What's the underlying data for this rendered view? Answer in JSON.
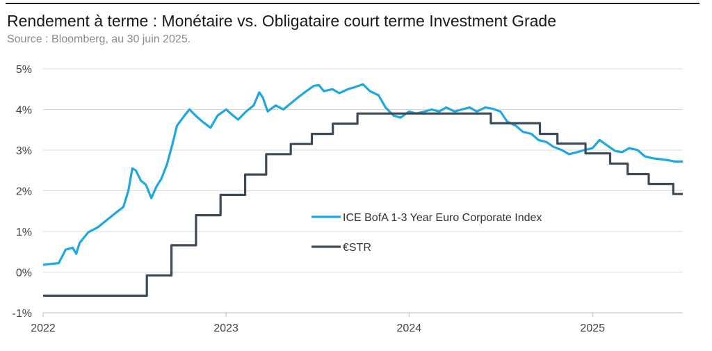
{
  "header": {
    "title": "Rendement à terme : Monétaire vs. Obligataire court terme Investment Grade",
    "subtitle": "Source : Bloomberg, au 30 juin 2025."
  },
  "chart_data": {
    "type": "line",
    "grid": "horizontal",
    "legend_placement": "center-right",
    "ylim": [
      -1,
      5
    ],
    "xlim": [
      "2022-01-01",
      "2025-06-30"
    ],
    "y_ticks": [
      {
        "value": 5,
        "label": "5%"
      },
      {
        "value": 4,
        "label": "4%"
      },
      {
        "value": 3,
        "label": "3%"
      },
      {
        "value": 2,
        "label": "2%"
      },
      {
        "value": 1,
        "label": "1%"
      },
      {
        "value": 0,
        "label": "0%"
      },
      {
        "value": -1,
        "label": "-1%"
      }
    ],
    "x_ticks": [
      {
        "value": "2022-01-01",
        "label": "2022"
      },
      {
        "value": "2023-01-01",
        "label": "2023"
      },
      {
        "value": "2024-01-01",
        "label": "2024"
      },
      {
        "value": "2025-01-01",
        "label": "2025"
      }
    ],
    "series": [
      {
        "name": "ICE BofA 1-3 Year Euro Corporate Index",
        "color": "#1ea7e1",
        "style": "line",
        "points": [
          [
            "2022-01-01",
            0.18
          ],
          [
            "2022-01-15",
            0.2
          ],
          [
            "2022-02-01",
            0.22
          ],
          [
            "2022-02-15",
            0.55
          ],
          [
            "2022-03-01",
            0.6
          ],
          [
            "2022-03-08",
            0.45
          ],
          [
            "2022-03-15",
            0.72
          ],
          [
            "2022-04-01",
            0.98
          ],
          [
            "2022-04-20",
            1.1
          ],
          [
            "2022-05-10",
            1.3
          ],
          [
            "2022-05-25",
            1.45
          ],
          [
            "2022-06-10",
            1.6
          ],
          [
            "2022-06-20",
            2.0
          ],
          [
            "2022-06-28",
            2.55
          ],
          [
            "2022-07-05",
            2.5
          ],
          [
            "2022-07-15",
            2.25
          ],
          [
            "2022-07-25",
            2.15
          ],
          [
            "2022-08-05",
            1.82
          ],
          [
            "2022-08-15",
            2.1
          ],
          [
            "2022-08-25",
            2.3
          ],
          [
            "2022-09-05",
            2.65
          ],
          [
            "2022-09-15",
            3.1
          ],
          [
            "2022-09-25",
            3.6
          ],
          [
            "2022-10-10",
            3.85
          ],
          [
            "2022-10-20",
            4.0
          ],
          [
            "2022-11-01",
            3.85
          ],
          [
            "2022-11-15",
            3.7
          ],
          [
            "2022-12-01",
            3.55
          ],
          [
            "2022-12-15",
            3.85
          ],
          [
            "2023-01-01",
            4.0
          ],
          [
            "2023-01-10",
            3.9
          ],
          [
            "2023-01-25",
            3.75
          ],
          [
            "2023-02-10",
            3.95
          ],
          [
            "2023-02-25",
            4.1
          ],
          [
            "2023-03-08",
            4.42
          ],
          [
            "2023-03-15",
            4.3
          ],
          [
            "2023-03-25",
            3.95
          ],
          [
            "2023-04-10",
            4.1
          ],
          [
            "2023-04-25",
            4.0
          ],
          [
            "2023-05-10",
            4.15
          ],
          [
            "2023-05-25",
            4.3
          ],
          [
            "2023-06-10",
            4.45
          ],
          [
            "2023-06-25",
            4.58
          ],
          [
            "2023-07-05",
            4.6
          ],
          [
            "2023-07-15",
            4.45
          ],
          [
            "2023-08-01",
            4.5
          ],
          [
            "2023-08-15",
            4.4
          ],
          [
            "2023-09-01",
            4.5
          ],
          [
            "2023-09-15",
            4.55
          ],
          [
            "2023-10-01",
            4.62
          ],
          [
            "2023-10-15",
            4.45
          ],
          [
            "2023-11-01",
            4.35
          ],
          [
            "2023-11-15",
            4.05
          ],
          [
            "2023-12-01",
            3.85
          ],
          [
            "2023-12-15",
            3.8
          ],
          [
            "2024-01-01",
            3.95
          ],
          [
            "2024-01-15",
            3.9
          ],
          [
            "2024-02-01",
            3.95
          ],
          [
            "2024-02-15",
            4.0
          ],
          [
            "2024-03-01",
            3.95
          ],
          [
            "2024-03-15",
            4.05
          ],
          [
            "2024-04-01",
            3.95
          ],
          [
            "2024-04-15",
            4.0
          ],
          [
            "2024-05-01",
            4.05
          ],
          [
            "2024-05-15",
            3.95
          ],
          [
            "2024-06-01",
            4.05
          ],
          [
            "2024-06-15",
            4.02
          ],
          [
            "2024-07-01",
            3.95
          ],
          [
            "2024-07-15",
            3.7
          ],
          [
            "2024-08-01",
            3.6
          ],
          [
            "2024-08-15",
            3.45
          ],
          [
            "2024-09-01",
            3.4
          ],
          [
            "2024-09-15",
            3.25
          ],
          [
            "2024-10-01",
            3.2
          ],
          [
            "2024-10-15",
            3.08
          ],
          [
            "2024-11-01",
            3.0
          ],
          [
            "2024-11-15",
            2.9
          ],
          [
            "2024-12-01",
            2.95
          ],
          [
            "2024-12-15",
            3.0
          ],
          [
            "2025-01-01",
            3.05
          ],
          [
            "2025-01-15",
            3.25
          ],
          [
            "2025-02-01",
            3.1
          ],
          [
            "2025-02-15",
            2.98
          ],
          [
            "2025-03-01",
            2.95
          ],
          [
            "2025-03-15",
            3.05
          ],
          [
            "2025-04-01",
            3.0
          ],
          [
            "2025-04-15",
            2.85
          ],
          [
            "2025-05-01",
            2.8
          ],
          [
            "2025-05-15",
            2.78
          ],
          [
            "2025-06-01",
            2.75
          ],
          [
            "2025-06-15",
            2.72
          ],
          [
            "2025-06-30",
            2.72
          ]
        ]
      },
      {
        "name": "€STR",
        "color": "#3d4a55",
        "style": "step",
        "points": [
          [
            "2022-01-01",
            -0.58
          ],
          [
            "2022-07-27",
            -0.08
          ],
          [
            "2022-09-14",
            0.66
          ],
          [
            "2022-11-02",
            1.4
          ],
          [
            "2022-12-21",
            1.9
          ],
          [
            "2023-02-08",
            2.4
          ],
          [
            "2023-03-22",
            2.9
          ],
          [
            "2023-05-10",
            3.15
          ],
          [
            "2023-06-21",
            3.4
          ],
          [
            "2023-08-02",
            3.65
          ],
          [
            "2023-09-20",
            3.9
          ],
          [
            "2024-06-12",
            3.66
          ],
          [
            "2024-09-18",
            3.4
          ],
          [
            "2024-10-23",
            3.16
          ],
          [
            "2024-12-18",
            2.92
          ],
          [
            "2025-02-05",
            2.67
          ],
          [
            "2025-03-12",
            2.41
          ],
          [
            "2025-04-23",
            2.17
          ],
          [
            "2025-06-11",
            1.92
          ],
          [
            "2025-06-30",
            1.92
          ]
        ]
      }
    ]
  }
}
